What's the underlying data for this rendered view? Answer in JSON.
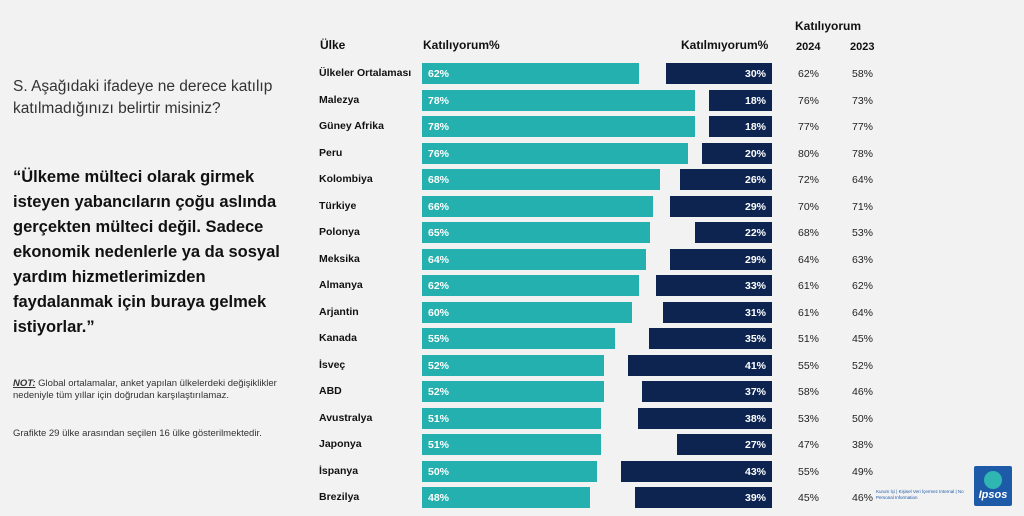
{
  "question": "S. Aşağıdaki ifadeye ne derece katılıp katılmadığınızı belirtir misiniz?",
  "quote": "“Ülkeme mülteci olarak girmek isteyen yabancıların çoğu aslında gerçekten mülteci değil. Sadece ekonomik nedenlerle ya da sosyal yardım hizmetlerimizden faydalanmak için buraya gelmek istiyorlar.”",
  "note_label": "NOT:",
  "note_text": "Global ortalamalar, anket yapılan ülkelerdeki değişiklikler nedeniyle tüm yıllar için doğrudan karşılaştırılamaz.",
  "note2": "Grafikte 29 ülke arasından seçilen 16 ülke gösterilmektedir.",
  "footer_tag": "Kurum İçi | Kişisel Veri İçermez Internal | No Personal Information",
  "logo_text": "Ipsos",
  "colors": {
    "agree": "#23b0ae",
    "disagree": "#0d2451",
    "brand": "#1d5aa8"
  },
  "chart_data": {
    "type": "bar",
    "headers": {
      "country": "Ülke",
      "agree": "Katılıyorum%",
      "disagree": "Katılmıyorum%",
      "trend_group": "Katılıyorum",
      "year_a": "2024",
      "year_b": "2023"
    },
    "categories": [
      "Ülkeler Ortalaması",
      "Malezya",
      "Güney Afrika",
      "Peru",
      "Kolombiya",
      "Türkiye",
      "Polonya",
      "Meksika",
      "Almanya",
      "Arjantin",
      "Kanada",
      "İsveç",
      "ABD",
      "Avustralya",
      "Japonya",
      "İspanya",
      "Brezilya"
    ],
    "series": [
      {
        "name": "Katılıyorum%",
        "values": [
          62,
          78,
          78,
          76,
          68,
          66,
          65,
          64,
          62,
          60,
          55,
          52,
          52,
          51,
          51,
          50,
          48
        ]
      },
      {
        "name": "Katılmıyorum%",
        "values": [
          30,
          18,
          18,
          20,
          26,
          29,
          22,
          29,
          33,
          31,
          35,
          41,
          37,
          38,
          27,
          43,
          39
        ]
      }
    ],
    "agree_labels": [
      "62%",
      "78%",
      "78%",
      "76%",
      "68%",
      "66%",
      "65%",
      "64%",
      "62%",
      "60%",
      "55%",
      "52%",
      "52%",
      "51%",
      "51%",
      "50%",
      "48%"
    ],
    "disagree_labels": [
      "30%",
      "18%",
      "18%",
      "20%",
      "26%",
      "29%",
      "22%",
      "29%",
      "33%",
      "31%",
      "35%",
      "41%",
      "37%",
      "38%",
      "27%",
      "43%",
      "39%"
    ],
    "agree_2024": [
      "62%",
      "76%",
      "77%",
      "80%",
      "72%",
      "70%",
      "68%",
      "64%",
      "61%",
      "61%",
      "51%",
      "55%",
      "58%",
      "53%",
      "47%",
      "55%",
      "45%"
    ],
    "agree_2023": [
      "58%",
      "73%",
      "77%",
      "78%",
      "64%",
      "71%",
      "53%",
      "63%",
      "62%",
      "64%",
      "45%",
      "52%",
      "46%",
      "50%",
      "38%",
      "49%",
      "46%"
    ]
  }
}
